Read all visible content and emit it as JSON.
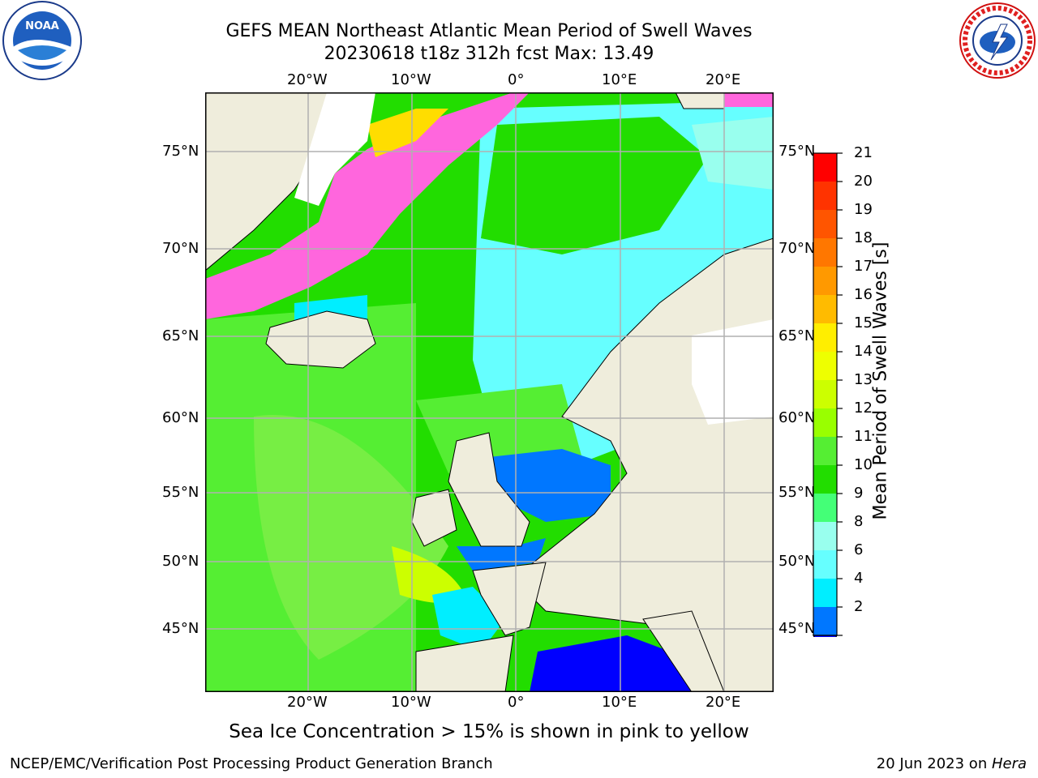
{
  "header": {
    "title": "GEFS MEAN Northeast Atlantic Mean Period of Swell Waves",
    "subtitle": "20230618 t18z 312h fcst   Max: 13.49"
  },
  "logos": {
    "left": {
      "icon": "noaa-logo",
      "text": "NOAA",
      "ring_text": "NATIONAL OCEANIC AND ATMOSPHERIC ADMINISTRATION · U.S. DEPARTMENT OF COMMERCE"
    },
    "right": {
      "icon": "nws-logo",
      "ring_text": "NATIONAL WEATHER SERVICE"
    }
  },
  "map": {
    "lon_labels": [
      "20°W",
      "10°W",
      "0°",
      "10°E",
      "20°E"
    ],
    "lat_labels": [
      "75°N",
      "70°N",
      "65°N",
      "60°N",
      "55°N",
      "50°N",
      "45°N"
    ],
    "colors": {
      "land": "#efeddc",
      "ice_white": "#ffffff",
      "grid": "#b0b0b0"
    }
  },
  "colorbar": {
    "label": "Mean Period of Swell Waves [s]",
    "ticks": [
      "21",
      "20",
      "19",
      "18",
      "17",
      "16",
      "15",
      "14",
      "13",
      "12",
      "11",
      "10",
      "9",
      "8",
      "6",
      "4",
      "2"
    ],
    "colors": [
      "#ff0000",
      "#ff3300",
      "#ff5500",
      "#ff7700",
      "#ff9900",
      "#ffbb00",
      "#ffee00",
      "#eeff00",
      "#ccff00",
      "#99ff00",
      "#55ee33",
      "#22dd00",
      "#44ff77",
      "#99ffee",
      "#66ffff",
      "#00eeff",
      "#0077ff"
    ],
    "extend_color": "#0000ff"
  },
  "bottom_note": "Sea Ice Concentration > 15% is shown in pink to yellow",
  "footer": {
    "left": "NCEP/EMC/Verification Post Processing Product Generation Branch",
    "right_date": "20 Jun 2023 on ",
    "right_host": "Hera"
  }
}
